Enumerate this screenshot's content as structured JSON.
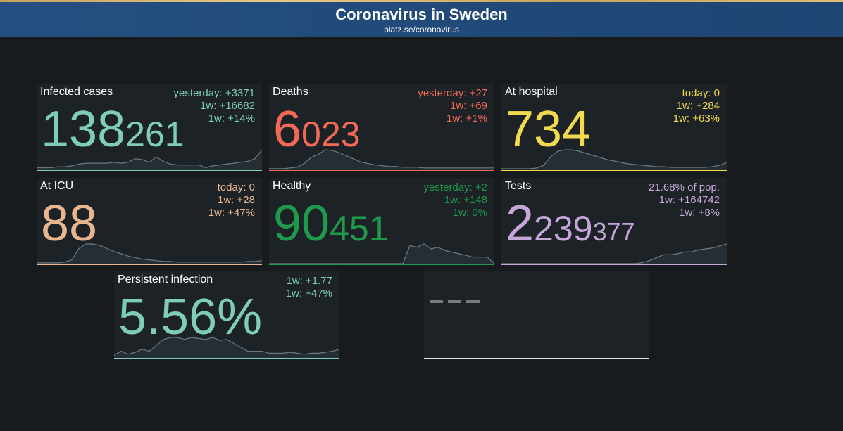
{
  "header": {
    "title": "Coronavirus in Sweden",
    "subtitle": "platz.se/coronavirus"
  },
  "cards": [
    {
      "title": "Infected cases",
      "big": "138",
      "small": "261",
      "stats": [
        "yesterday: +3371",
        "1w: +16682",
        "1w: +14%"
      ],
      "color": "#7fcdb9",
      "spark": [
        2,
        2,
        2,
        3,
        3,
        4,
        6,
        7,
        7,
        7,
        7,
        8,
        7,
        8,
        12,
        11,
        8,
        14,
        9,
        6,
        5,
        5,
        5,
        5,
        2,
        4,
        5,
        6,
        7,
        8,
        9,
        12,
        22
      ]
    },
    {
      "title": "Deaths",
      "big": "6",
      "small": "023",
      "stats": [
        "yesterday: +27",
        "1w: +69",
        "1w: +1%"
      ],
      "color": "#f26a55",
      "spark": [
        1,
        1,
        1,
        2,
        3,
        8,
        16,
        20,
        26,
        25,
        22,
        18,
        14,
        10,
        8,
        6,
        5,
        4,
        4,
        3,
        3,
        3,
        2,
        2,
        2,
        2,
        2,
        2,
        2,
        2,
        2,
        2,
        2
      ]
    },
    {
      "title": "At hospital",
      "big": "734",
      "small": "",
      "stats": [
        "today: 0",
        "1w: +284",
        "1w: +63%"
      ],
      "color": "#f2da4e",
      "spark": [
        1,
        1,
        1,
        1,
        1,
        2,
        6,
        18,
        26,
        28,
        28,
        26,
        23,
        20,
        17,
        14,
        12,
        10,
        8,
        7,
        6,
        5,
        4,
        4,
        3,
        3,
        3,
        3,
        3,
        3,
        4,
        6,
        10
      ]
    },
    {
      "title": "At ICU",
      "big": "88",
      "small": "",
      "stats": [
        "today: 0",
        "1w: +28",
        "1w: +47%"
      ],
      "color": "#e9b690",
      "spark": [
        1,
        1,
        1,
        1,
        2,
        5,
        20,
        26,
        26,
        24,
        20,
        16,
        13,
        10,
        8,
        6,
        5,
        4,
        3,
        3,
        2,
        2,
        2,
        2,
        2,
        2,
        2,
        2,
        2,
        2,
        3,
        3,
        4
      ]
    },
    {
      "title": "Healthy",
      "big": "90",
      "small": "451",
      "stats": [
        "yesterday: +2",
        "1w: +148",
        "1w: 0%"
      ],
      "color": "#1f9a4c",
      "spark": [
        0,
        0,
        0,
        0,
        0,
        0,
        0,
        0,
        0,
        0,
        0,
        0,
        0,
        0,
        0,
        0,
        0,
        0,
        0,
        0,
        22,
        20,
        24,
        18,
        20,
        16,
        14,
        12,
        10,
        8,
        8,
        8,
        0
      ]
    },
    {
      "title": "Tests",
      "big": "2",
      "small": "239",
      "small2": "377",
      "stats": [
        "21.68% of pop.",
        "1w: +164742",
        "1w: +8%"
      ],
      "color": "#c4a6d8",
      "spark": [
        0,
        0,
        0,
        0,
        0,
        0,
        0,
        0,
        0,
        0,
        0,
        0,
        0,
        0,
        0,
        0,
        0,
        0,
        0,
        0,
        1,
        3,
        6,
        9,
        9,
        10,
        12,
        12,
        14,
        15,
        16,
        18,
        20
      ]
    },
    {
      "title": "Persistent infection",
      "big": "5.56%",
      "small": "",
      "stats": [
        "1w: +1.77",
        "1w: +47%"
      ],
      "color": "#7fcdb9",
      "spark": [
        2,
        6,
        3,
        5,
        8,
        6,
        12,
        18,
        20,
        20,
        18,
        20,
        19,
        18,
        20,
        17,
        18,
        14,
        10,
        6,
        6,
        6,
        4,
        4,
        4,
        5,
        4,
        3,
        4,
        4,
        5,
        6,
        8
      ]
    },
    {
      "title": "",
      "big": "",
      "small": "",
      "stats": [],
      "color": "#e8e8e8",
      "spark": []
    }
  ]
}
